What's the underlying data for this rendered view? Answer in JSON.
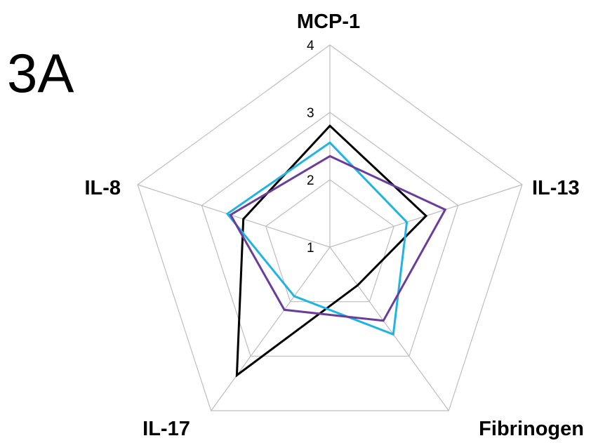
{
  "chart_data": {
    "type": "radar",
    "panel_label": "3A",
    "axes": [
      "MCP-1",
      "IL-13",
      "Fibrinogen",
      "IL-17",
      "IL-8"
    ],
    "rlim": [
      1,
      4
    ],
    "ticks": [
      "1",
      "2",
      "3",
      "4"
    ],
    "tick_values": [
      1,
      2,
      3,
      4
    ],
    "grid": true,
    "legend": "none",
    "series": [
      {
        "color": "#000000",
        "values": [
          2.8,
          2.5,
          1.7,
          3.35,
          2.35
        ]
      },
      {
        "color": "#1fb4e4",
        "values": [
          2.55,
          2.2,
          2.6,
          1.9,
          2.6
        ]
      },
      {
        "color": "#6a3d9a",
        "values": [
          2.35,
          2.8,
          2.35,
          2.15,
          2.55
        ]
      }
    ]
  }
}
